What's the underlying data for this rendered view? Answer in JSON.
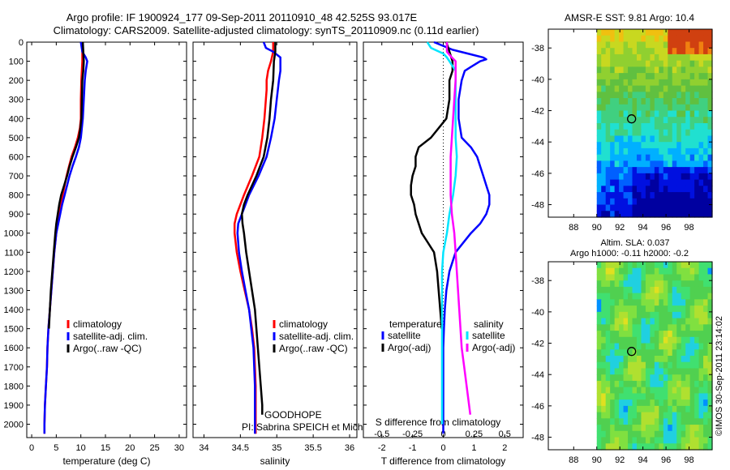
{
  "header": {
    "line1": "Argo profile: IF 1900924_177 09-Sep-2011 20110910_48 42.525S 93.017E",
    "line2": "Climatology: CARS2009. Satellite-adjusted climatology: synTS_20110909.nc (0.11d earlier)"
  },
  "colors": {
    "red": "#ff0000",
    "blue": "#0000ff",
    "black": "#000000",
    "cyan": "#00e5ff",
    "magenta": "#ff00ff"
  },
  "panels": {
    "temperature": {
      "xlabel": "temperature (deg C)",
      "xlim": [
        -1,
        31.5
      ],
      "xticks": [
        "0",
        "5",
        "10",
        "15",
        "20",
        "25",
        "30"
      ],
      "legend": [
        "climatology",
        "satellite-adj. clim.",
        "Argo(..raw -QC)"
      ]
    },
    "salinity": {
      "xlabel": "salinity",
      "xlim": [
        33.85,
        36.1
      ],
      "xticks": [
        "34",
        "34.5",
        "35",
        "35.5",
        "36"
      ],
      "legend": [
        "climatology",
        "satellite-adj. clim.",
        "Argo(..raw -QC)"
      ],
      "annotation1": "GOODHOPE",
      "annotation2": "PI: Sabrina SPEICH et Michel AREAN"
    },
    "difference": {
      "xlabel": "T difference from climatology",
      "xlim": [
        -2.6,
        2.6
      ],
      "xticks": [
        "-2",
        "-1",
        "0",
        "1",
        "2"
      ],
      "s_label": "S difference from climatology",
      "s_ticks": [
        "-0.5",
        "-0.25",
        "0",
        "0.25",
        "0.5"
      ],
      "legend_t_title": "temperature",
      "legend_t": [
        "satellite",
        "Argo(-adj)"
      ],
      "legend_s_title": "salinity",
      "legend_s": [
        "satellite",
        "Argo(-adj)"
      ]
    },
    "depth_ticks": [
      "0",
      "100",
      "200",
      "300",
      "400",
      "500",
      "600",
      "700",
      "800",
      "900",
      "1000",
      "1100",
      "1200",
      "1300",
      "1400",
      "1500",
      "1600",
      "1700",
      "1800",
      "1900",
      "2000"
    ],
    "ylim": [
      0,
      2070
    ]
  },
  "maps": {
    "sst_title": "AMSR-E SST: 9.81  Argo: 10.4",
    "sla_title1": "Altim. SLA: 0.037",
    "sla_title2": "Argo h1000: -0.11 h2000: -0.2",
    "lat_ticks": [
      "-38",
      "-40",
      "-42",
      "-44",
      "-46",
      "-48"
    ],
    "lon_ticks": [
      "88",
      "90",
      "92",
      "94",
      "96",
      "98"
    ],
    "lat_range": [
      -36.8,
      -48.8
    ],
    "lon_range": [
      85.8,
      100
    ],
    "data_lon_min": 90,
    "float_position": [
      93.017,
      -42.525
    ],
    "side_label": "©IMOS 30-Sep-2011 23:14:02"
  },
  "chart_data": [
    {
      "type": "line",
      "title": "",
      "xlabel": "temperature (deg C)",
      "ylabel": "",
      "xlim": [
        -1,
        31.5
      ],
      "ylim": [
        2070,
        0
      ],
      "series": [
        {
          "name": "climatology",
          "color": "#ff0000",
          "depth": [
            0,
            50,
            100,
            150,
            200,
            300,
            400,
            450,
            500,
            550,
            600,
            650,
            700,
            750,
            800,
            850,
            900,
            950,
            1000,
            1100,
            1200,
            1300,
            1400,
            1500,
            1600,
            1700,
            1800,
            1900,
            2000,
            2050
          ],
          "values": [
            10.3,
            10.3,
            10.3,
            10.2,
            10.1,
            10.0,
            10.0,
            9.8,
            9.4,
            8.8,
            8.1,
            7.6,
            7.1,
            6.7,
            6.3,
            5.9,
            5.6,
            5.3,
            5.0,
            4.6,
            4.3,
            4.0,
            3.7,
            3.4,
            3.2,
            3.1,
            2.9,
            2.7,
            2.6,
            2.6
          ]
        },
        {
          "name": "satellite-adj. clim.",
          "color": "#0000ff",
          "depth": [
            0,
            50,
            80,
            100,
            150,
            200,
            300,
            400,
            450,
            500,
            550,
            600,
            650,
            700,
            750,
            800,
            850,
            900,
            950,
            1000,
            1100,
            1200,
            1300,
            1400,
            1500,
            1600,
            1700,
            1800,
            1900,
            2000,
            2050
          ],
          "values": [
            10.0,
            10.3,
            11.0,
            11.3,
            11.0,
            10.8,
            10.6,
            10.4,
            10.2,
            10.0,
            9.6,
            9.0,
            8.3,
            7.7,
            7.2,
            6.7,
            6.2,
            5.8,
            5.4,
            5.0,
            4.6,
            4.3,
            4.0,
            3.7,
            3.4,
            3.2,
            3.1,
            2.9,
            2.7,
            2.6,
            2.6
          ]
        },
        {
          "name": "Argo(..raw -QC)",
          "color": "#000000",
          "depth": [
            0,
            50,
            100,
            150,
            200,
            300,
            400,
            450,
            500,
            550,
            600,
            650,
            700,
            750,
            800,
            850,
            900,
            950,
            1000,
            1100,
            1200,
            1300,
            1400,
            1500
          ],
          "values": [
            10.4,
            10.5,
            10.6,
            10.5,
            10.3,
            10.2,
            10.1,
            9.9,
            9.6,
            9.0,
            8.3,
            7.7,
            7.2,
            6.6,
            6.0,
            5.6,
            5.3,
            5.0,
            4.8,
            4.5,
            4.2,
            3.9,
            3.7,
            3.5
          ]
        }
      ]
    },
    {
      "type": "line",
      "title": "",
      "xlabel": "salinity",
      "ylabel": "",
      "xlim": [
        33.85,
        36.1
      ],
      "ylim": [
        2070,
        0
      ],
      "series": [
        {
          "name": "climatology",
          "color": "#ff0000",
          "depth": [
            0,
            50,
            100,
            150,
            200,
            250,
            300,
            400,
            500,
            600,
            700,
            800,
            900,
            950,
            1000,
            1100,
            1200,
            1300,
            1400,
            1500,
            1600,
            1700,
            1800,
            1900,
            2000,
            2050
          ],
          "values": [
            34.95,
            34.95,
            34.92,
            34.88,
            34.86,
            34.86,
            34.85,
            34.83,
            34.8,
            34.76,
            34.66,
            34.55,
            34.45,
            34.42,
            34.42,
            34.45,
            34.5,
            34.56,
            34.62,
            34.66,
            34.69,
            34.7,
            34.71,
            34.71,
            34.71,
            34.71
          ]
        },
        {
          "name": "satellite-adj. clim.",
          "color": "#0000ff",
          "depth": [
            0,
            30,
            50,
            80,
            100,
            150,
            200,
            300,
            400,
            500,
            600,
            700,
            800,
            900,
            950,
            1000,
            1100,
            1200,
            1300,
            1400,
            1500,
            1600,
            1700,
            1800,
            1900,
            2000,
            2050
          ],
          "values": [
            34.82,
            34.85,
            34.95,
            35.05,
            35.05,
            35.05,
            35.03,
            35.0,
            34.97,
            34.92,
            34.86,
            34.75,
            34.62,
            34.52,
            34.47,
            34.46,
            34.48,
            34.52,
            34.57,
            34.62,
            34.65,
            34.68,
            34.69,
            34.7,
            34.7,
            34.7,
            34.7
          ]
        },
        {
          "name": "Argo(..raw -QC)",
          "color": "#000000",
          "depth": [
            0,
            50,
            100,
            200,
            300,
            400,
            500,
            600,
            700,
            800,
            850,
            900,
            950,
            1000,
            1100,
            1200,
            1300,
            1400,
            1500,
            1600,
            1700,
            1800,
            1900,
            1950
          ],
          "values": [
            34.98,
            34.98,
            34.96,
            34.95,
            34.92,
            34.9,
            34.87,
            34.82,
            34.72,
            34.6,
            34.55,
            34.52,
            34.53,
            34.55,
            34.58,
            34.62,
            34.66,
            34.7,
            34.72,
            34.74,
            34.76,
            34.78,
            34.8,
            34.8
          ]
        }
      ]
    },
    {
      "type": "line",
      "title": "",
      "xlabel": "T difference from climatology",
      "ylabel": "",
      "xlim": [
        -2.6,
        2.6
      ],
      "ylim": [
        2070,
        0
      ],
      "series": [
        {
          "name": "temperature satellite",
          "color": "#0000ff",
          "depth": [
            0,
            40,
            60,
            80,
            90,
            100,
            130,
            150,
            200,
            300,
            400,
            500,
            550,
            600,
            650,
            700,
            750,
            800,
            850,
            900,
            950,
            1000,
            1100,
            1200,
            1300,
            1400,
            1500,
            1600,
            1700,
            1800,
            1900,
            2000,
            2050
          ],
          "values": [
            -0.3,
            0.3,
            0.8,
            1.3,
            1.4,
            1.2,
            0.9,
            0.7,
            0.6,
            0.5,
            0.5,
            0.6,
            0.9,
            1.1,
            1.2,
            1.3,
            1.4,
            1.5,
            1.5,
            1.4,
            1.2,
            0.9,
            0.4,
            0.2,
            0.1,
            0.05,
            0.02,
            0.0,
            0.0,
            0.0,
            0.0,
            0.0,
            0.0
          ]
        },
        {
          "name": "temperature Argo(-adj)",
          "color": "#000000",
          "depth": [
            0,
            50,
            100,
            150,
            200,
            300,
            400,
            500,
            550,
            600,
            650,
            700,
            750,
            800,
            850,
            900,
            950,
            1000,
            1050,
            1100,
            1200,
            1300,
            1400,
            1500
          ],
          "values": [
            0.1,
            0.2,
            0.3,
            0.3,
            0.2,
            0.2,
            0.1,
            -0.4,
            -0.8,
            -0.9,
            -0.9,
            -1.0,
            -1.05,
            -1.05,
            -0.95,
            -0.9,
            -0.8,
            -0.7,
            -0.5,
            -0.3,
            -0.2,
            -0.15,
            -0.1,
            -0.05
          ]
        },
        {
          "name": "salinity satellite",
          "color": "#00e5ff",
          "depth": [
            0,
            30,
            60,
            80,
            100,
            150,
            200,
            300,
            400,
            500,
            600,
            700,
            800,
            900,
            1000,
            1100,
            1200,
            1300,
            1400,
            1500,
            1600,
            1700,
            1800,
            1900,
            2000
          ],
          "values": [
            -0.13,
            -0.1,
            0.0,
            0.03,
            0.05,
            0.1,
            0.1,
            0.1,
            0.1,
            0.1,
            0.11,
            0.1,
            0.08,
            0.05,
            0.03,
            0.0,
            -0.01,
            -0.01,
            -0.01,
            -0.01,
            -0.01,
            -0.01,
            -0.01,
            -0.01,
            -0.01
          ]
        },
        {
          "name": "salinity Argo(-adj)",
          "color": "#ff00ff",
          "depth": [
            0,
            50,
            80,
            100,
            150,
            200,
            300,
            400,
            500,
            600,
            700,
            800,
            900,
            1000,
            1100,
            1200,
            1300,
            1400,
            1500,
            1600,
            1700,
            1800,
            1900,
            1950
          ],
          "values": [
            0.03,
            0.03,
            0.07,
            0.1,
            0.1,
            0.1,
            0.09,
            0.08,
            0.07,
            0.06,
            0.06,
            0.06,
            0.07,
            0.09,
            0.1,
            0.11,
            0.12,
            0.13,
            0.14,
            0.15,
            0.17,
            0.19,
            0.21,
            0.22
          ]
        }
      ]
    }
  ]
}
